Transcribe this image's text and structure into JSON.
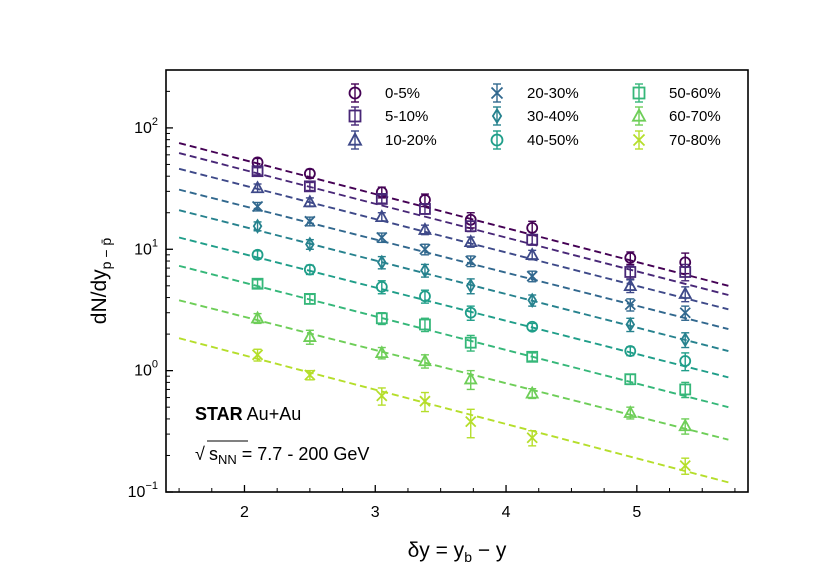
{
  "chart_data": {
    "type": "scatter",
    "yscale": "log",
    "xlim": [
      1.4,
      5.85
    ],
    "ylim": [
      0.1,
      300
    ],
    "xticks": [
      2,
      3,
      4,
      5
    ],
    "xtick_labels": [
      "2",
      "3",
      "4",
      "5"
    ],
    "yticks": [
      {
        "value": 0.1,
        "base": "10",
        "exp": "−1"
      },
      {
        "value": 1,
        "base": "10",
        "exp": "0"
      },
      {
        "value": 10,
        "base": "10",
        "exp": "1"
      },
      {
        "value": 100,
        "base": "10",
        "exp": "2"
      }
    ],
    "xlabel": {
      "main": "δy = y",
      "sub": "b",
      "tail": " − y"
    },
    "ylabel": {
      "main": "dN/dy",
      "sub": "p − p̄"
    },
    "fit_range": [
      1.5,
      5.7
    ],
    "annotation": {
      "star": "STAR",
      "system": " Au+Au",
      "sqrt_symbol": "√",
      "s_text": "s",
      "s_sub": "NN",
      "energy": " = 7.7 - 200 GeV"
    },
    "x": [
      2.1,
      2.5,
      3.05,
      3.38,
      3.73,
      4.2,
      4.95,
      5.37
    ],
    "series": [
      {
        "name": "0-5%",
        "color": "#440154",
        "marker": "circle",
        "values": [
          52,
          42,
          29.5,
          25.5,
          17.5,
          15,
          8.5,
          7.8
        ],
        "errors": [
          4,
          3.5,
          3,
          3,
          2.5,
          2,
          1,
          1.5
        ],
        "fit": [
          75,
          5.0
        ]
      },
      {
        "name": "5-10%",
        "color": "#482777",
        "marker": "square",
        "values": [
          44,
          33,
          26,
          21.5,
          15.5,
          12,
          6.5,
          6.5
        ],
        "errors": [
          3,
          2.5,
          2,
          2,
          1.5,
          1.2,
          0.8,
          1
        ],
        "fit": [
          62,
          4.2
        ]
      },
      {
        "name": "10-20%",
        "color": "#3e4989",
        "marker": "triangle-up",
        "values": [
          32,
          24.5,
          18.5,
          14.5,
          11.5,
          9,
          5,
          4.3
        ],
        "errors": [
          2.5,
          2,
          1.5,
          1.3,
          1.1,
          0.8,
          0.6,
          0.6
        ],
        "fit": [
          46,
          3.2
        ]
      },
      {
        "name": "20-30%",
        "color": "#31688e",
        "marker": "x",
        "values": [
          22.5,
          17,
          12.5,
          10,
          8,
          6,
          3.5,
          3
        ],
        "errors": [
          1.8,
          1.4,
          1.1,
          1,
          0.8,
          0.6,
          0.4,
          0.4
        ],
        "fit": [
          31,
          2.2
        ]
      },
      {
        "name": "30-40%",
        "color": "#26828e",
        "marker": "diamond",
        "values": [
          15.5,
          11,
          7.8,
          6.7,
          5,
          3.8,
          2.4,
          1.8
        ],
        "errors": [
          1.3,
          1,
          0.9,
          0.8,
          0.7,
          0.4,
          0.3,
          0.25
        ],
        "fit": [
          21,
          1.45
        ]
      },
      {
        "name": "40-50%",
        "color": "#1f9e89",
        "marker": "circle",
        "values": [
          9,
          6.8,
          4.9,
          4.1,
          3,
          2.3,
          1.45,
          1.2
        ],
        "errors": [
          0.7,
          0.6,
          0.6,
          0.5,
          0.4,
          0.15,
          0.12,
          0.2
        ],
        "fit": [
          12.5,
          0.88
        ]
      },
      {
        "name": "50-60%",
        "color": "#35b779",
        "marker": "square",
        "values": [
          5.2,
          3.9,
          2.7,
          2.4,
          1.7,
          1.3,
          0.85,
          0.7
        ],
        "errors": [
          0.4,
          0.35,
          0.3,
          0.3,
          0.25,
          0.1,
          0.08,
          0.1
        ],
        "fit": [
          7.3,
          0.5
        ]
      },
      {
        "name": "60-70%",
        "color": "#6ece58",
        "marker": "triangle-up",
        "values": [
          2.7,
          1.9,
          1.4,
          1.2,
          0.85,
          0.65,
          0.45,
          0.35
        ],
        "errors": [
          0.25,
          0.25,
          0.15,
          0.15,
          0.15,
          0.06,
          0.05,
          0.05
        ],
        "fit": [
          3.8,
          0.27
        ]
      },
      {
        "name": "70-80%",
        "color": "#b5de2b",
        "marker": "x",
        "values": [
          1.35,
          0.92,
          0.62,
          0.56,
          0.38,
          0.28,
          null,
          0.165
        ],
        "errors": [
          0.15,
          0.08,
          0.1,
          0.1,
          0.1,
          0.04,
          null,
          0.025
        ],
        "fit": [
          1.85,
          0.12
        ]
      }
    ]
  }
}
